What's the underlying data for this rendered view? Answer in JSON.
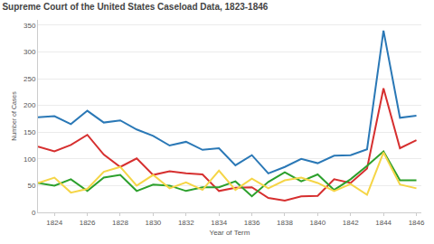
{
  "chart_data": {
    "type": "line",
    "title": "Supreme Court of the United States Caseload Data, 1823-1846",
    "x_label": "Year of Term",
    "y_label": "Number of Cases",
    "x": [
      1823,
      1824,
      1825,
      1826,
      1827,
      1828,
      1829,
      1830,
      1831,
      1832,
      1833,
      1834,
      1835,
      1836,
      1837,
      1838,
      1839,
      1840,
      1841,
      1842,
      1843,
      1844,
      1845,
      1846
    ],
    "series": [
      {
        "color": "#2a78b6",
        "values": [
          178,
          180,
          165,
          190,
          168,
          172,
          155,
          143,
          125,
          132,
          117,
          120,
          88,
          107,
          73,
          85,
          100,
          92,
          106,
          107,
          118,
          340,
          177,
          181
        ]
      },
      {
        "color": "#d62f2f",
        "values": [
          123,
          114,
          126,
          145,
          108,
          85,
          101,
          70,
          77,
          73,
          71,
          40,
          46,
          47,
          27,
          22,
          30,
          31,
          62,
          55,
          82,
          232,
          120,
          135
        ]
      },
      {
        "color": "#2ca02c",
        "values": [
          55,
          50,
          62,
          40,
          65,
          70,
          40,
          52,
          50,
          40,
          47,
          47,
          58,
          30,
          57,
          75,
          58,
          71,
          42,
          62,
          87,
          114,
          60,
          60
        ]
      },
      {
        "color": "#f5d547",
        "values": [
          55,
          65,
          37,
          44,
          76,
          85,
          50,
          70,
          45,
          56,
          42,
          78,
          42,
          63,
          45,
          60,
          65,
          55,
          40,
          53,
          33,
          112,
          52,
          45
        ]
      }
    ],
    "xlim": [
      1823,
      1846.3
    ],
    "xticks": [
      1824,
      1826,
      1828,
      1830,
      1832,
      1834,
      1836,
      1838,
      1840,
      1842,
      1844,
      1846
    ],
    "ylim": [
      0,
      360
    ],
    "yticks": [
      0,
      50,
      100,
      150,
      200,
      250,
      300,
      350
    ],
    "grid": true
  }
}
